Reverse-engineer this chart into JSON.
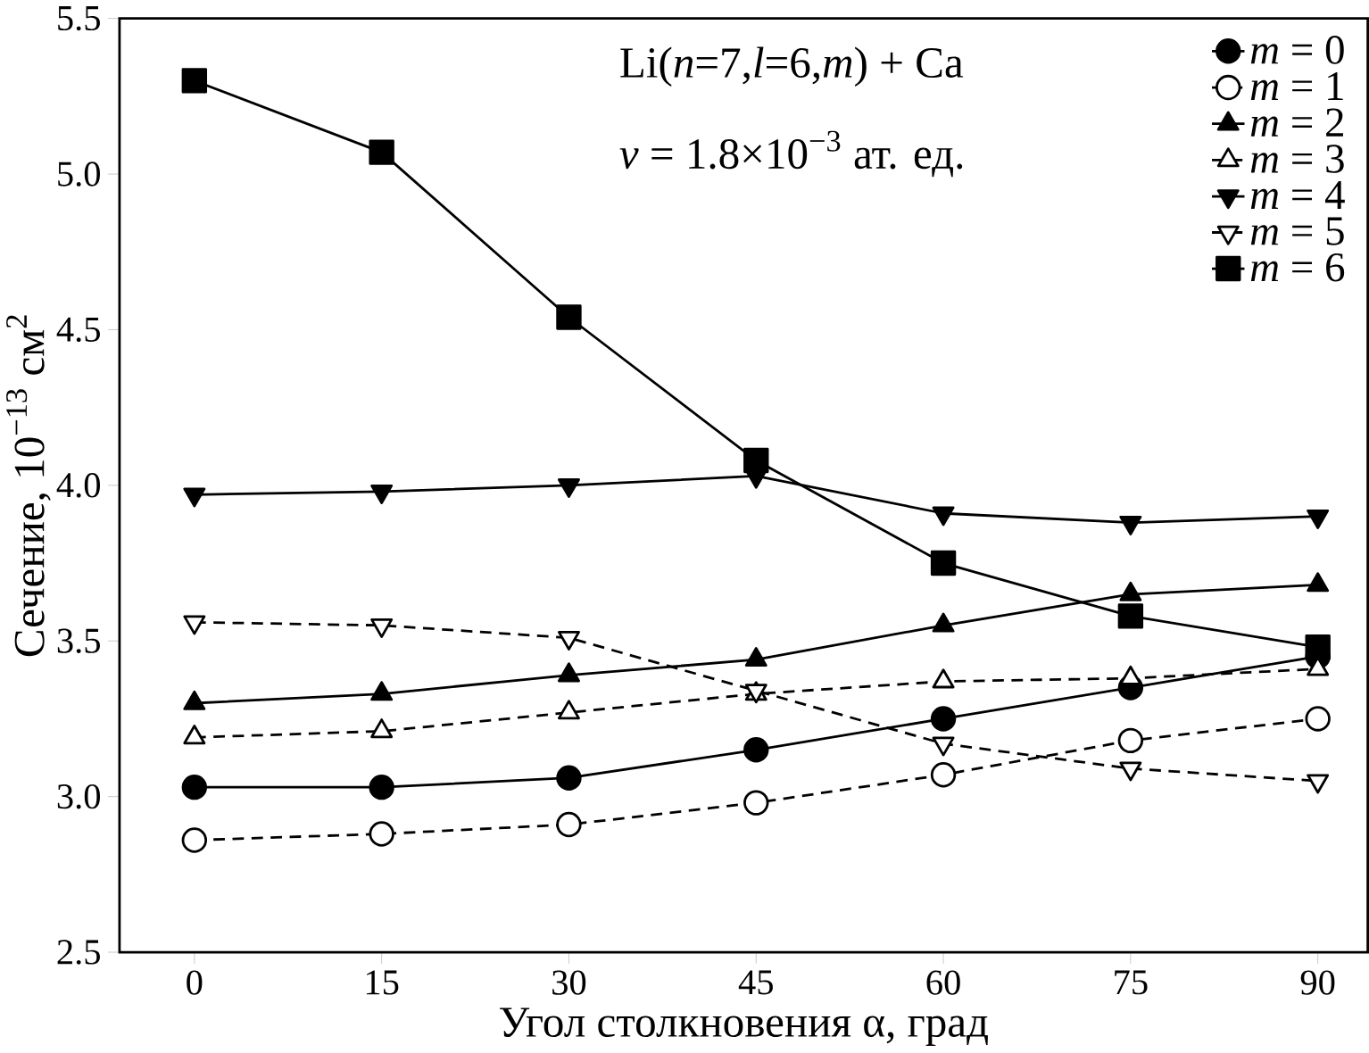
{
  "chart_data": {
    "type": "line",
    "xlabel": "Угол столкновения α, град",
    "ylabel": "Сечение, 10$^{−13}$ см$^{2}$",
    "annotations": [
      "Li(*n*=7,*l*=6,*m*) + Ca",
      "*v* = 1.8×10$^{−3}$ ат. ед."
    ],
    "x": [
      0,
      15,
      30,
      45,
      60,
      75,
      90
    ],
    "series": [
      {
        "name": "*m* = 0",
        "color": "#000000",
        "marker": "circle",
        "line_style": "solid",
        "values": [
          3.03,
          3.03,
          3.06,
          3.15,
          3.25,
          3.35,
          3.45
        ]
      },
      {
        "name": "*m* = 1",
        "color": "#000000",
        "marker": "circle",
        "line_style": "dashed",
        "values": [
          2.86,
          2.88,
          2.91,
          2.98,
          3.07,
          3.18,
          3.25
        ]
      },
      {
        "name": "*m* = 2",
        "color": "#000000",
        "marker": "triangle",
        "line_style": "solid",
        "values": [
          3.3,
          3.33,
          3.39,
          3.44,
          3.55,
          3.65,
          3.68
        ]
      },
      {
        "name": "*m* = 3",
        "color": "#000000",
        "marker": "triangle",
        "line_style": "dashed",
        "values": [
          3.19,
          3.21,
          3.27,
          3.33,
          3.37,
          3.38,
          3.41
        ]
      },
      {
        "name": "*m* = 4",
        "color": "#000000",
        "marker": "triangle down",
        "line_style": "solid",
        "values": [
          3.97,
          3.98,
          4.0,
          4.03,
          3.91,
          3.88,
          3.9
        ]
      },
      {
        "name": "*m* = 5",
        "color": "#000000",
        "marker": "triangle down",
        "line_style": "dashed",
        "values": [
          3.56,
          3.55,
          3.51,
          3.34,
          3.17,
          3.09,
          3.05
        ]
      },
      {
        "name": "*m* = 6",
        "color": "#000000",
        "marker": "square",
        "line_style": "solid",
        "values": [
          5.3,
          5.07,
          4.54,
          4.08,
          3.75,
          3.58,
          3.48
        ]
      }
    ],
    "xlim": [
      -6,
      94
    ],
    "ylim": [
      2.5,
      5.5
    ],
    "xticks": [
      0,
      15,
      30,
      45,
      60,
      75,
      90
    ],
    "yticks": [
      2.5,
      {
        "value": 3,
        "label": "3.0"
      },
      3.5,
      {
        "value": 4,
        "label": "4.0"
      },
      4.5,
      {
        "value": 5,
        "label": "5.0"
      },
      5.5
    ],
    "legend": "top right",
    "grid": false
  }
}
